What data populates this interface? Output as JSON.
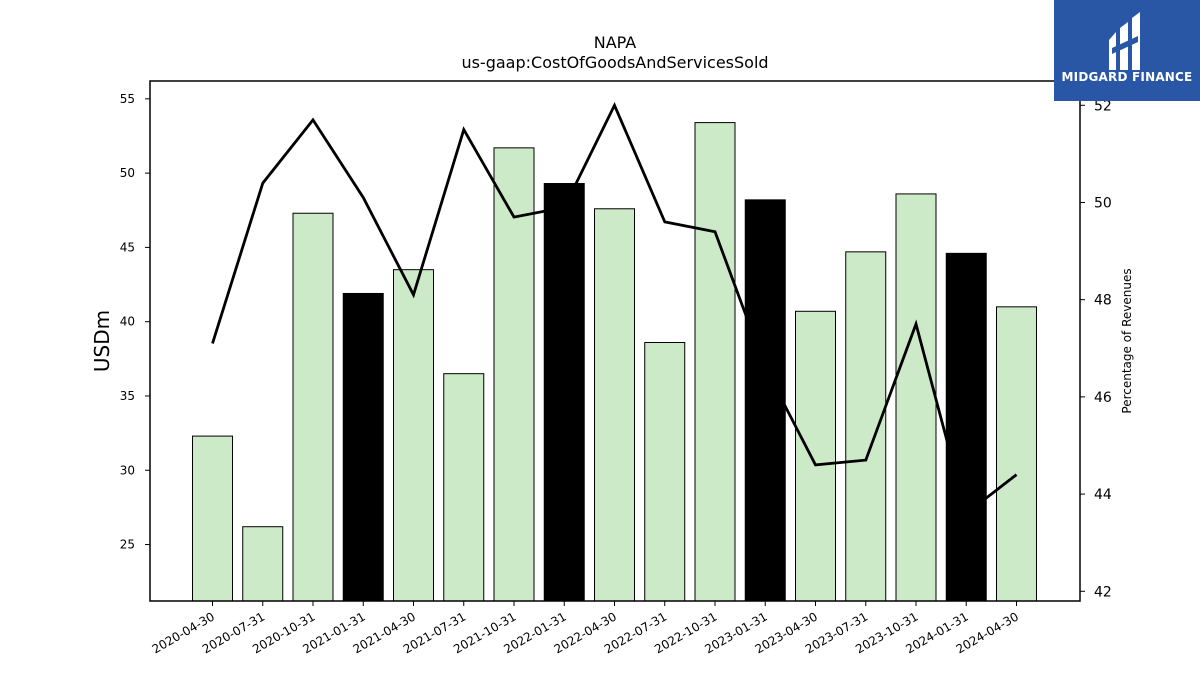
{
  "chart_data": {
    "type": "bar",
    "title": "NAPA",
    "subtitle": "us-gaap:CostOfGoodsAndServicesSold",
    "ylabel": "USDm",
    "ylabel_right": "Percentage of Revenues",
    "categories": [
      "2020-04-30",
      "2020-07-31",
      "2020-10-31",
      "2021-01-31",
      "2021-04-30",
      "2021-07-31",
      "2021-10-31",
      "2022-01-31",
      "2022-04-30",
      "2022-07-31",
      "2022-10-31",
      "2023-01-31",
      "2023-04-30",
      "2023-07-31",
      "2023-10-31",
      "2024-01-31",
      "2024-04-30"
    ],
    "series": [
      {
        "type": "bar",
        "values": [
          32.3,
          26.2,
          47.3,
          41.9,
          43.5,
          36.5,
          51.7,
          49.3,
          47.6,
          38.6,
          53.4,
          48.2,
          40.7,
          44.7,
          48.6,
          44.6,
          41.0
        ],
        "highlight": [
          false,
          false,
          false,
          true,
          false,
          false,
          false,
          true,
          false,
          false,
          false,
          true,
          false,
          false,
          false,
          true,
          false
        ],
        "color": "#cdeac8",
        "highlight_color": "#000000",
        "axis": "left"
      },
      {
        "type": "line",
        "values": [
          47.1,
          50.4,
          51.7,
          50.1,
          48.1,
          51.5,
          49.7,
          49.9,
          52.0,
          49.6,
          49.4,
          46.6,
          44.6,
          44.7,
          47.5,
          43.6,
          44.4
        ],
        "color": "#000000",
        "axis": "right"
      }
    ],
    "ylim": [
      21.2,
      56.2
    ],
    "y_ticks": [
      25,
      30,
      35,
      40,
      45,
      50,
      55
    ],
    "ylim_right": [
      41.8,
      52.5
    ],
    "y_right_ticks": [
      42,
      44,
      46,
      48,
      50,
      52
    ],
    "grid": false,
    "legend": "none"
  },
  "logo": {
    "text": "MIDGARD FINANCE",
    "color": "#2a56a6"
  }
}
